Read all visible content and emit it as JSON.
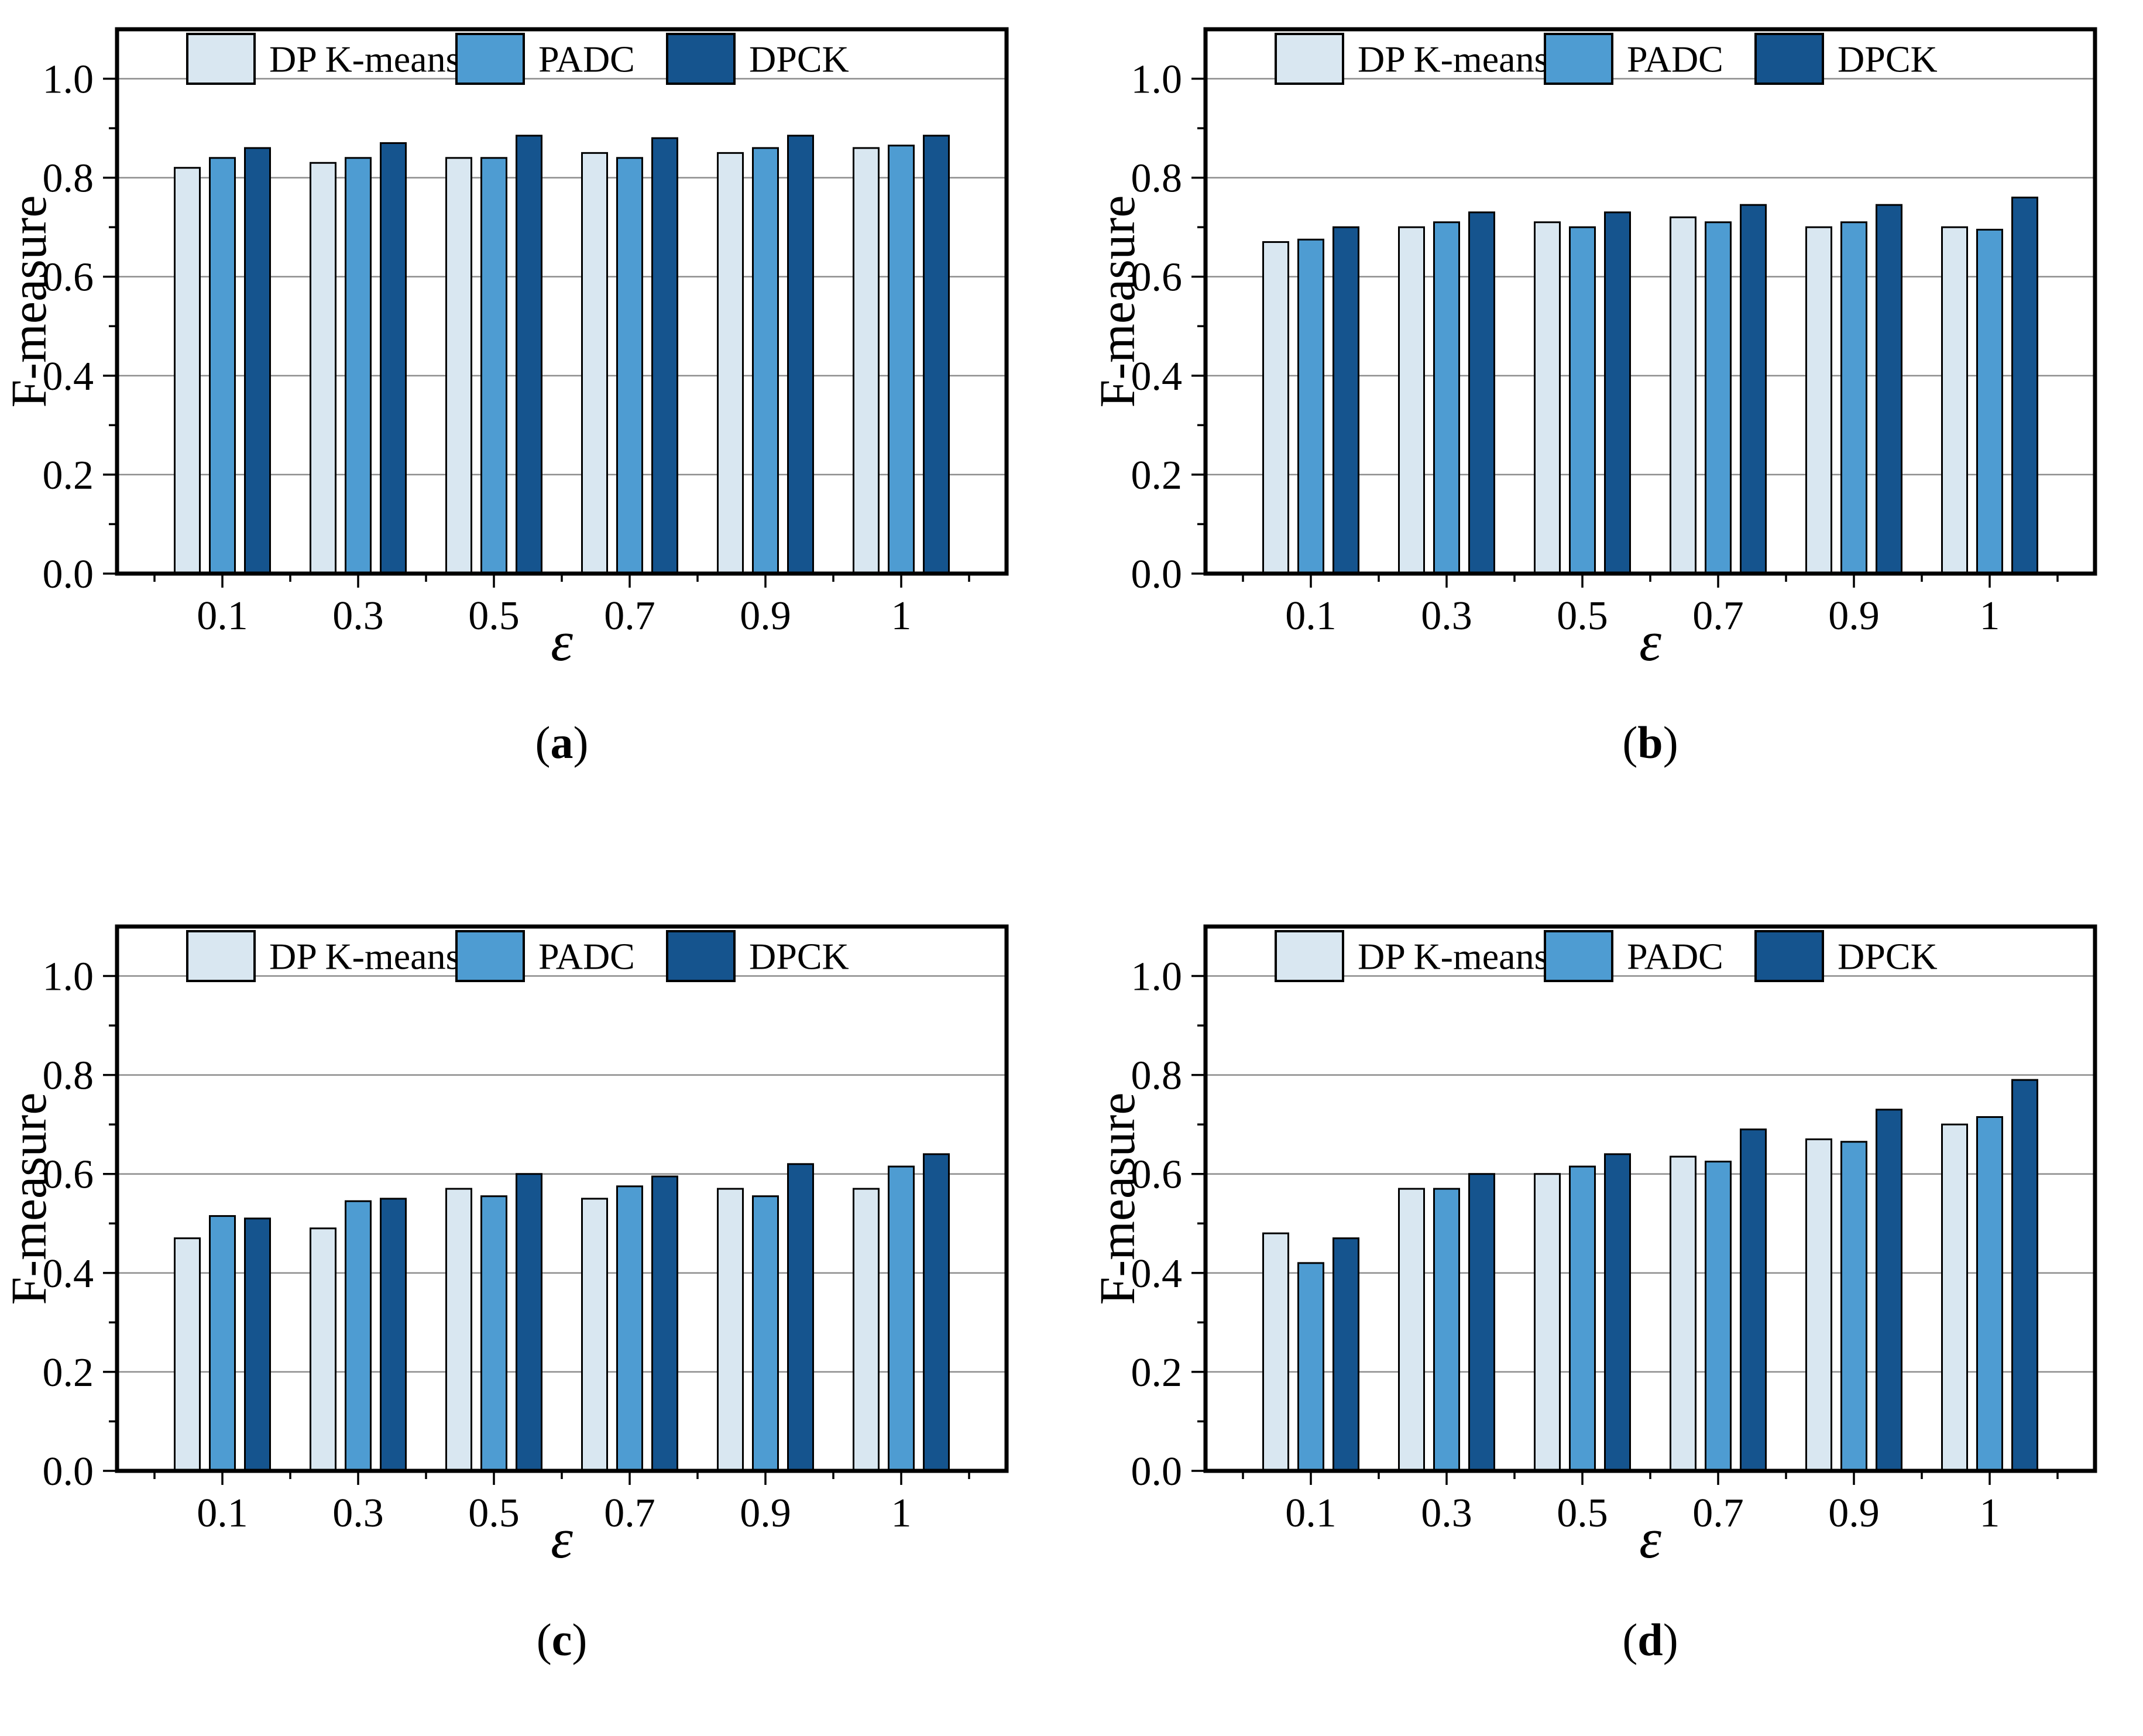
{
  "captions": {
    "open": "(",
    "close": ")"
  },
  "style": {
    "background": "#ffffff",
    "frame_color": "#000000",
    "gridline_color": "#8c8c8c",
    "bar_edge_color": "#000000",
    "tick_color": "#000000",
    "series_colors": {
      "DP K-means": "#d9e7f1",
      "PADC": "#4e9cd2",
      "DPCK": "#15548e"
    }
  },
  "legend": {
    "items": [
      "DP K-means",
      "PADC",
      "DPCK"
    ]
  },
  "chart_data": [
    {
      "type": "bar",
      "panel": "a",
      "caption_letter": "a",
      "title": "",
      "xlabel": "ε",
      "ylabel": "F-measure",
      "categories": [
        "0.1",
        "0.3",
        "0.5",
        "0.7",
        "0.9",
        "1"
      ],
      "series": [
        {
          "name": "DP K-means",
          "color": "#d9e7f1",
          "values": [
            0.82,
            0.83,
            0.84,
            0.85,
            0.85,
            0.86
          ]
        },
        {
          "name": "PADC",
          "color": "#4e9cd2",
          "values": [
            0.84,
            0.84,
            0.84,
            0.84,
            0.86,
            0.865
          ]
        },
        {
          "name": "DPCK",
          "color": "#15548e",
          "values": [
            0.86,
            0.87,
            0.885,
            0.88,
            0.885,
            0.885
          ]
        }
      ],
      "ylim": [
        0,
        1.1
      ],
      "yticks": [
        0,
        0.2,
        0.4,
        0.6,
        0.8,
        1.0
      ],
      "ytick_labels": [
        "0.0",
        "0.2",
        "0.4",
        "0.6",
        "0.8",
        "1.0"
      ],
      "grid": true,
      "legend_position": "top-inside"
    },
    {
      "type": "bar",
      "panel": "b",
      "caption_letter": "b",
      "title": "",
      "xlabel": "ε",
      "ylabel": "F-measure",
      "categories": [
        "0.1",
        "0.3",
        "0.5",
        "0.7",
        "0.9",
        "1"
      ],
      "series": [
        {
          "name": "DP K-means",
          "color": "#d9e7f1",
          "values": [
            0.67,
            0.7,
            0.71,
            0.72,
            0.7,
            0.7
          ]
        },
        {
          "name": "PADC",
          "color": "#4e9cd2",
          "values": [
            0.675,
            0.71,
            0.7,
            0.71,
            0.71,
            0.695
          ]
        },
        {
          "name": "DPCK",
          "color": "#15548e",
          "values": [
            0.7,
            0.73,
            0.73,
            0.745,
            0.745,
            0.76
          ]
        }
      ],
      "ylim": [
        0,
        1.1
      ],
      "yticks": [
        0,
        0.2,
        0.4,
        0.6,
        0.8,
        1.0
      ],
      "ytick_labels": [
        "0.0",
        "0.2",
        "0.4",
        "0.6",
        "0.8",
        "1.0"
      ],
      "grid": true,
      "legend_position": "top-inside"
    },
    {
      "type": "bar",
      "panel": "c",
      "caption_letter": "c",
      "title": "",
      "xlabel": "ε",
      "ylabel": "F-measure",
      "categories": [
        "0.1",
        "0.3",
        "0.5",
        "0.7",
        "0.9",
        "1"
      ],
      "series": [
        {
          "name": "DP K-means",
          "color": "#d9e7f1",
          "values": [
            0.47,
            0.49,
            0.57,
            0.55,
            0.57,
            0.57
          ]
        },
        {
          "name": "PADC",
          "color": "#4e9cd2",
          "values": [
            0.515,
            0.545,
            0.555,
            0.575,
            0.555,
            0.615
          ]
        },
        {
          "name": "DPCK",
          "color": "#15548e",
          "values": [
            0.51,
            0.55,
            0.6,
            0.595,
            0.62,
            0.64
          ]
        }
      ],
      "ylim": [
        0,
        1.1
      ],
      "yticks": [
        0,
        0.2,
        0.4,
        0.6,
        0.8,
        1.0
      ],
      "ytick_labels": [
        "0.0",
        "0.2",
        "0.4",
        "0.6",
        "0.8",
        "1.0"
      ],
      "grid": true,
      "legend_position": "top-inside"
    },
    {
      "type": "bar",
      "panel": "d",
      "caption_letter": "d",
      "title": "",
      "xlabel": "ε",
      "ylabel": "F-measure",
      "categories": [
        "0.1",
        "0.3",
        "0.5",
        "0.7",
        "0.9",
        "1"
      ],
      "series": [
        {
          "name": "DP K-means",
          "color": "#d9e7f1",
          "values": [
            0.48,
            0.57,
            0.6,
            0.635,
            0.67,
            0.7
          ]
        },
        {
          "name": "PADC",
          "color": "#4e9cd2",
          "values": [
            0.42,
            0.57,
            0.615,
            0.625,
            0.665,
            0.715
          ]
        },
        {
          "name": "DPCK",
          "color": "#15548e",
          "values": [
            0.47,
            0.6,
            0.64,
            0.69,
            0.73,
            0.79
          ]
        }
      ],
      "ylim": [
        0,
        1.1
      ],
      "yticks": [
        0,
        0.2,
        0.4,
        0.6,
        0.8,
        1.0
      ],
      "ytick_labels": [
        "0.0",
        "0.2",
        "0.4",
        "0.6",
        "0.8",
        "1.0"
      ],
      "grid": true,
      "legend_position": "top-inside"
    }
  ]
}
